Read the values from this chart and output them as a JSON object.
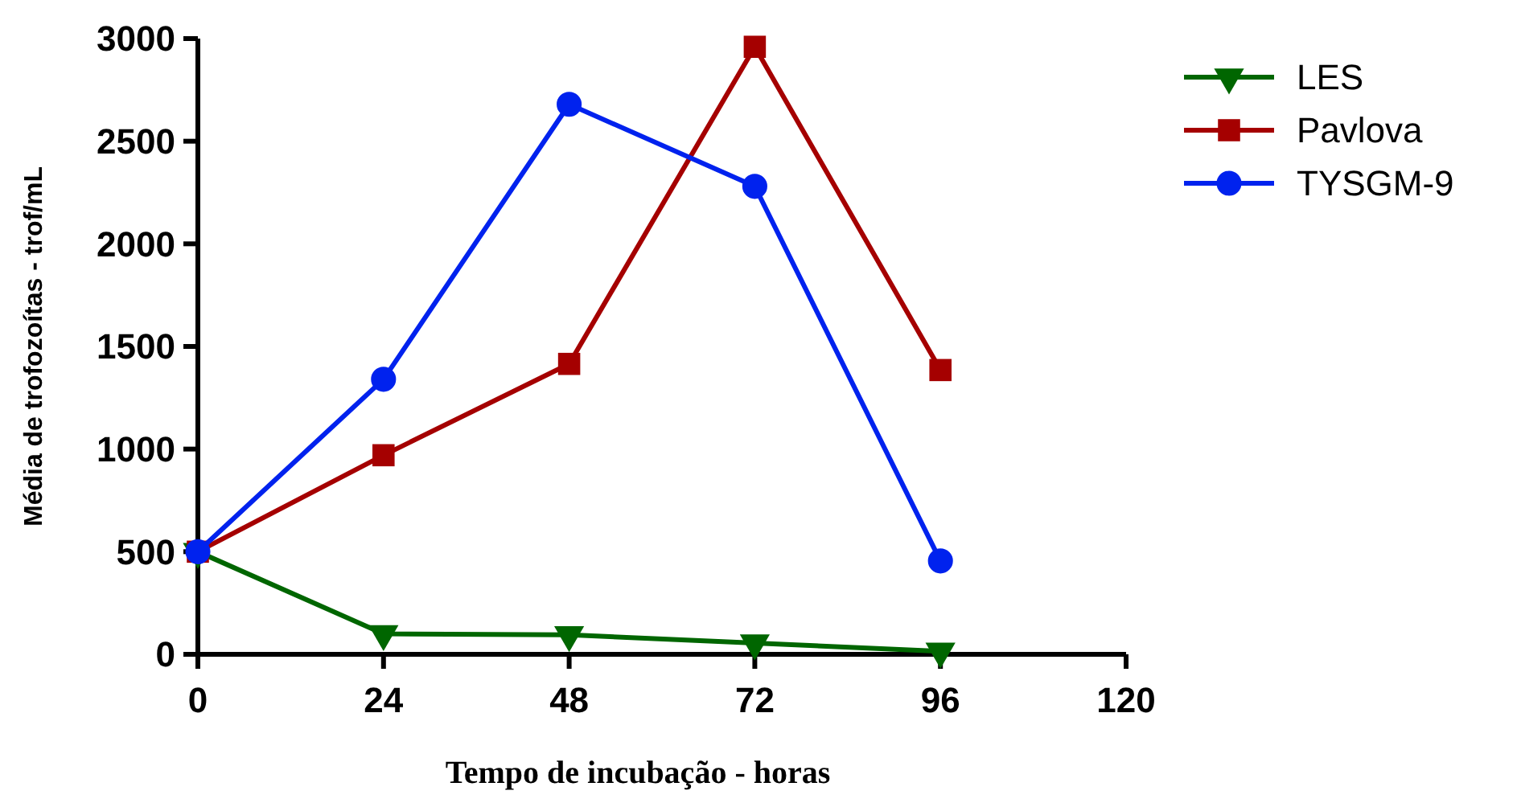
{
  "chart_data": {
    "type": "line",
    "xlabel": "Tempo de incubação - horas",
    "ylabel": "Média de trofozoítas - trof/mL",
    "x": [
      0,
      24,
      48,
      72,
      96
    ],
    "xlim": [
      0,
      120
    ],
    "xticks": [
      0,
      24,
      48,
      72,
      96,
      120
    ],
    "ylim": [
      0,
      3000
    ],
    "yticks": [
      0,
      500,
      1000,
      1500,
      2000,
      2500,
      3000
    ],
    "legend": "right",
    "series": [
      {
        "name": "LES",
        "color": "#006600",
        "marker": "triangle",
        "values": [
          500,
          100,
          95,
          55,
          15
        ]
      },
      {
        "name": "Pavlova",
        "color": "#a50000",
        "marker": "square",
        "values": [
          500,
          970,
          1415,
          2960,
          1385
        ]
      },
      {
        "name": "TYSGM-9",
        "color": "#0022ee",
        "marker": "circle",
        "values": [
          500,
          1340,
          2680,
          2280,
          455
        ]
      }
    ]
  }
}
